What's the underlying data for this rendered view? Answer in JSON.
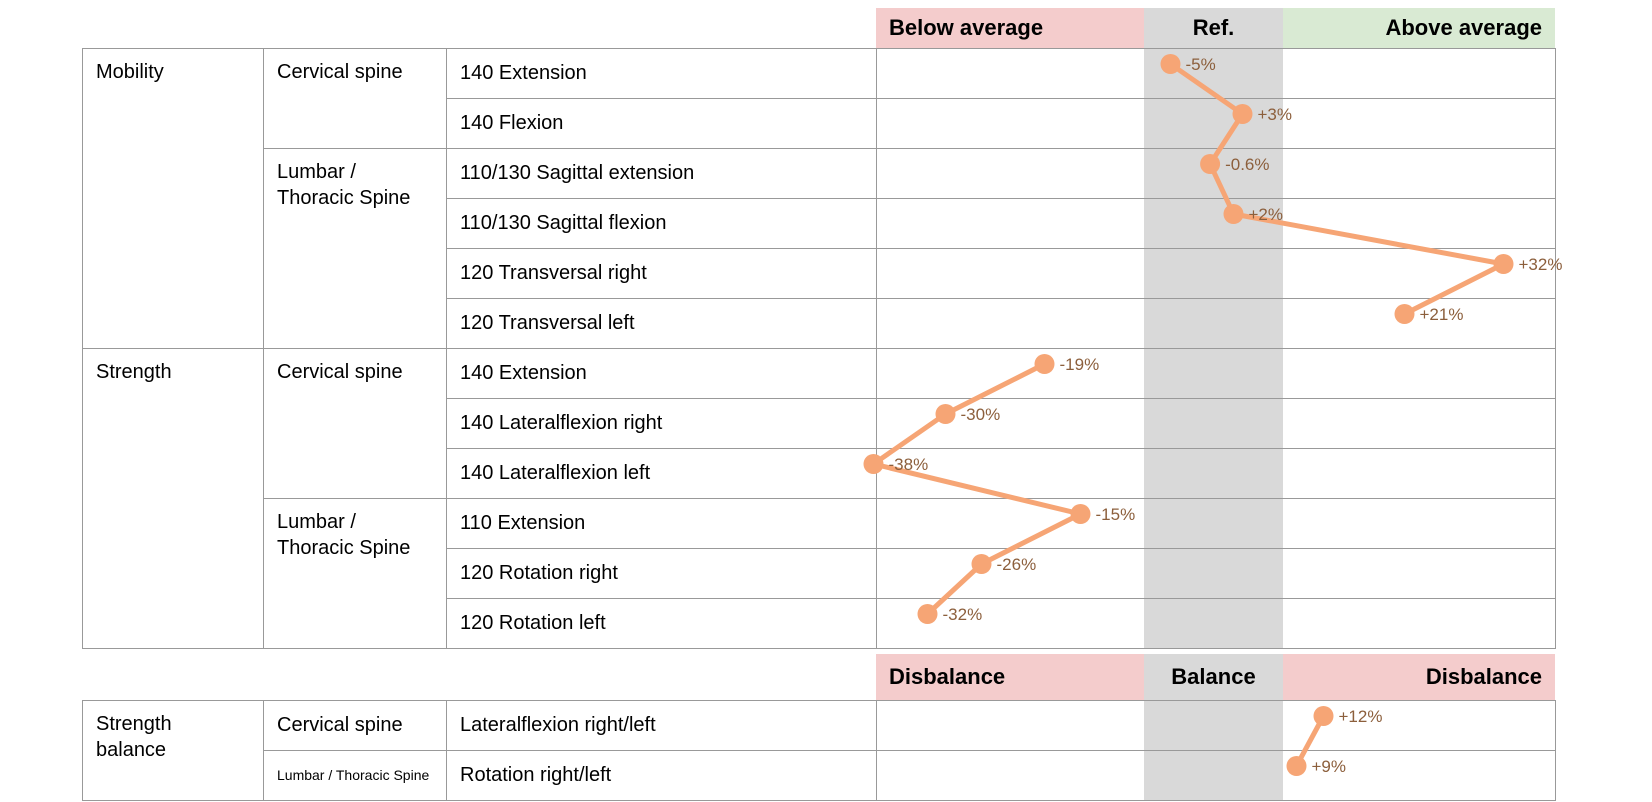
{
  "colors": {
    "zone_bad": "#f4cccc",
    "zone_neutral": "#d9d9d9",
    "zone_good": "#d9ead3",
    "series": "#f6a575",
    "point_label": "#8c5f3c",
    "grid": "#999999",
    "text": "#000000"
  },
  "tables": [
    {
      "header": [
        {
          "key": "below-average",
          "label": "Below average",
          "tone": "bad",
          "align": "left"
        },
        {
          "key": "ref",
          "label": "Ref.",
          "tone": "neutral",
          "align": "center"
        },
        {
          "key": "above-average",
          "label": "Above average",
          "tone": "good",
          "align": "right"
        }
      ],
      "groups": [
        {
          "category": "Mobility",
          "chart": 0,
          "regions": [
            {
              "region": "Cervical spine",
              "tests": [
                "140 Extension",
                "140 Flexion"
              ]
            },
            {
              "region": "Lumbar /\nThoracic Spine",
              "tests": [
                "110/130 Sagittal extension",
                "110/130 Sagittal flexion",
                "120 Transversal right",
                "120 Transversal left"
              ]
            }
          ]
        },
        {
          "category": "Strength",
          "chart": 1,
          "regions": [
            {
              "region": "Cervical spine",
              "tests": [
                "140 Extension",
                "140 Lateralflexion right",
                "140 Lateralflexion left"
              ]
            },
            {
              "region": "Lumbar /\nThoracic Spine",
              "tests": [
                "110 Extension",
                "120 Rotation right",
                "120 Rotation left"
              ]
            }
          ]
        }
      ]
    },
    {
      "header": [
        {
          "key": "disbalance-left",
          "label": "Disbalance",
          "tone": "bad",
          "align": "left"
        },
        {
          "key": "balance",
          "label": "Balance",
          "tone": "neutral",
          "align": "center"
        },
        {
          "key": "disbalance-right",
          "label": "Disbalance",
          "tone": "bad",
          "align": "right"
        }
      ],
      "groups": [
        {
          "category": "Strength\nbalance",
          "chart": 2,
          "regions": [
            {
              "region": "Cervical spine",
              "tests": [
                "Lateralflexion right/left"
              ]
            },
            {
              "region": "Lumbar / Thoracic Spine",
              "small": true,
              "tests": [
                "Rotation right/left"
              ]
            }
          ]
        }
      ]
    }
  ],
  "chart_data": [
    {
      "type": "line",
      "key": "mobility",
      "title": "Mobility",
      "categories": [
        "140 Extension",
        "140 Flexion",
        "110/130 Sagittal extension",
        "110/130 Sagittal flexion",
        "120 Transversal right",
        "120 Transversal left"
      ],
      "series": [
        {
          "name": "Mobility",
          "values": [
            -5,
            3,
            -0.6,
            2,
            32,
            21
          ]
        }
      ],
      "point_labels": [
        "-5%",
        "+3%",
        "-0.6%",
        "+2%",
        "+32%",
        "+21%"
      ],
      "x_zones": [
        {
          "label": "Below average",
          "range_pct": [
            -37.7,
            -7.9
          ]
        },
        {
          "label": "Ref.",
          "range_pct": [
            -7.9,
            7.5
          ]
        },
        {
          "label": "Above average",
          "range_pct": [
            7.5,
            37.7
          ]
        }
      ],
      "xlim": [
        -37.7,
        37.7
      ],
      "grid": true,
      "legend": "none"
    },
    {
      "type": "line",
      "key": "strength",
      "title": "Strength",
      "categories": [
        "140 Extension",
        "140 Lateralflexion right",
        "140 Lateralflexion left",
        "110 Extension",
        "120 Rotation right",
        "120 Rotation left"
      ],
      "series": [
        {
          "name": "Strength",
          "values": [
            -19,
            -30,
            -38,
            -15,
            -26,
            -32
          ]
        }
      ],
      "point_labels": [
        "-19%",
        "-30%",
        "-38%",
        "-15%",
        "-26%",
        "-32%"
      ],
      "x_zones": [
        {
          "label": "Below average",
          "range_pct": [
            -37.7,
            -7.9
          ]
        },
        {
          "label": "Ref.",
          "range_pct": [
            -7.9,
            7.5
          ]
        },
        {
          "label": "Above average",
          "range_pct": [
            7.5,
            37.7
          ]
        }
      ],
      "xlim": [
        -37.7,
        37.7
      ],
      "grid": true,
      "legend": "none"
    },
    {
      "type": "line",
      "key": "strength-balance",
      "title": "Strength balance",
      "categories": [
        "Lateralflexion right/left",
        "Rotation right/left"
      ],
      "series": [
        {
          "name": "Strength balance",
          "values": [
            12,
            9
          ]
        }
      ],
      "point_labels": [
        "+12%",
        "+9%"
      ],
      "x_zones": [
        {
          "label": "Disbalance",
          "range_pct": [
            -37.7,
            -7.9
          ]
        },
        {
          "label": "Balance",
          "range_pct": [
            -7.9,
            7.5
          ]
        },
        {
          "label": "Disbalance",
          "range_pct": [
            7.5,
            37.7
          ]
        }
      ],
      "xlim": [
        -37.7,
        37.7
      ],
      "grid": true,
      "legend": "none"
    }
  ]
}
